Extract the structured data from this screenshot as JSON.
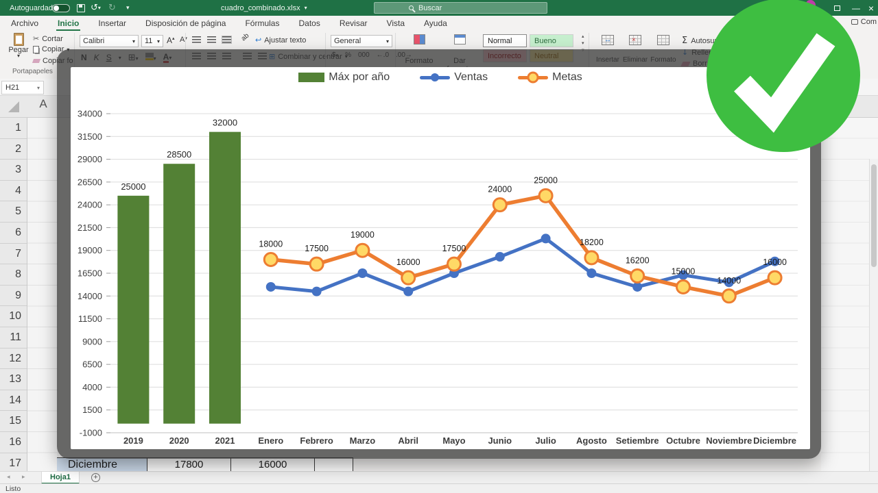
{
  "title_bar": {
    "autosave": "Autoguardado",
    "filename": "cuadro_combinado.xlsx",
    "search_placeholder": "Buscar"
  },
  "tabs": {
    "items": [
      "Archivo",
      "Inicio",
      "Insertar",
      "Disposición de página",
      "Fórmulas",
      "Datos",
      "Revisar",
      "Vista",
      "Ayuda"
    ],
    "active": "Inicio",
    "comments_label": "Com"
  },
  "ribbon": {
    "clipboard": {
      "paste": "Pegar",
      "cut": "Cortar",
      "copy": "Copiar",
      "format_painter": "Copiar fo",
      "group": "Portapapeles"
    },
    "font": {
      "family": "Calibri",
      "size": "11",
      "bold": "N",
      "italic": "K",
      "underline": "S"
    },
    "alignment": {
      "wrap_text": "Ajustar texto",
      "merge_center": "Combinar y centrar"
    },
    "number": {
      "format": "General"
    },
    "styles": {
      "conditional": "Formato",
      "format_table": "Dar formato",
      "cells": [
        {
          "label": "Normal",
          "bg": "#ffffff",
          "fg": "#1f1f1f"
        },
        {
          "label": "Bueno",
          "bg": "#c6efce",
          "fg": "#2e6b3f"
        },
        {
          "label": "Incorrecto",
          "bg": "#ffc7ce",
          "fg": "#9c0006"
        },
        {
          "label": "Neutral",
          "bg": "#ffeb9c",
          "fg": "#9c6500"
        }
      ]
    },
    "cells": {
      "insert": "Insertar",
      "delete": "Eliminar",
      "format": "Formato"
    },
    "editing": {
      "autosum": "Autosuma",
      "fill": "Rellenar",
      "clear": "Borrar"
    }
  },
  "formula_bar": {
    "name_box": "H21"
  },
  "sheet": {
    "column_header": "A",
    "row_numbers": [
      "1",
      "2",
      "3",
      "4",
      "5",
      "6",
      "7",
      "8",
      "9",
      "10",
      "11",
      "12",
      "13",
      "14",
      "15",
      "16",
      "17"
    ],
    "visible_cells": [
      "Diciembre",
      "17800",
      "16000",
      ""
    ],
    "tab": "Hoja1",
    "status": "Listo"
  },
  "colors": {
    "excel_green": "#217346",
    "bar_green": "#538135",
    "ventas_blue": "#4472C4",
    "metas_orange": "#ED7D31",
    "metas_marker_fill": "#FFD966",
    "check_circle_green": "#3EBE41"
  },
  "chart_data": {
    "type": "combo",
    "categories": [
      "2019",
      "2020",
      "2021",
      "Enero",
      "Febrero",
      "Marzo",
      "Abril",
      "Mayo",
      "Junio",
      "Julio",
      "Agosto",
      "Setiembre",
      "Octubre",
      "Noviembre",
      "Diciembre"
    ],
    "axis": {
      "min": -1000,
      "max": 34000,
      "step": 2500
    },
    "grid": true,
    "legend_position": "top",
    "series": [
      {
        "name": "Máx por año",
        "type": "bar",
        "color": "#538135",
        "show_labels": true,
        "values": [
          25000,
          28500,
          32000,
          null,
          null,
          null,
          null,
          null,
          null,
          null,
          null,
          null,
          null,
          null,
          null
        ]
      },
      {
        "name": "Ventas",
        "type": "line",
        "color": "#4472C4",
        "show_labels": false,
        "marker": {
          "fill": "#4472C4",
          "stroke": "#4472C4",
          "r": 7,
          "stroke_width": 0
        },
        "values": [
          null,
          null,
          null,
          15000,
          14500,
          16500,
          14500,
          16500,
          18300,
          20300,
          16500,
          15000,
          16300,
          15500,
          17800
        ]
      },
      {
        "name": "Metas",
        "type": "line",
        "color": "#ED7D31",
        "show_labels": true,
        "marker": {
          "fill": "#FFD966",
          "stroke": "#ED7D31",
          "r": 9.5,
          "stroke_width": 3
        },
        "values": [
          null,
          null,
          null,
          18000,
          17500,
          19000,
          16000,
          17500,
          24000,
          25000,
          18200,
          16200,
          15000,
          14000,
          16000
        ]
      }
    ]
  }
}
